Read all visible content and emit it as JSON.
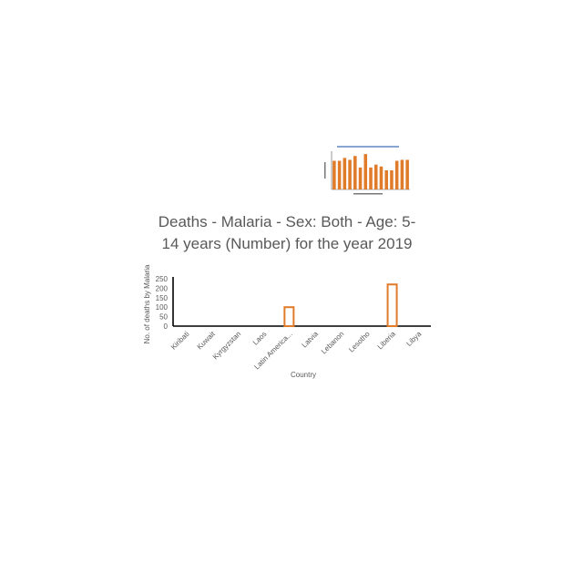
{
  "chart_data": [
    {
      "type": "bar",
      "title": "Deaths - Malaria - Sex: Both - Age: 5-14 years (Number) for the year 2019",
      "xlabel": "Country",
      "ylabel": "No. of deaths by Malaria",
      "categories": [
        "Kiribati",
        "Kuwait",
        "Kyrgyzstan",
        "Laos",
        "Latin America...",
        "Latvia",
        "Lebanon",
        "Lesotho",
        "Liberia",
        "Libya"
      ],
      "values": [
        0,
        0,
        0,
        0,
        100,
        0,
        0,
        0,
        220,
        0
      ],
      "yticks": [
        "0",
        "50",
        "100",
        "150",
        "200",
        "250"
      ],
      "ylim": [
        0,
        250
      ],
      "bar_style": "outlined",
      "color": "#e07b2a"
    },
    {
      "type": "bar",
      "values": [
        30,
        30,
        33,
        31,
        35,
        23,
        37,
        23,
        26,
        24,
        20,
        20,
        30,
        31,
        31
      ],
      "ylim": [
        0,
        40
      ],
      "color": "#e07b2a"
    }
  ]
}
